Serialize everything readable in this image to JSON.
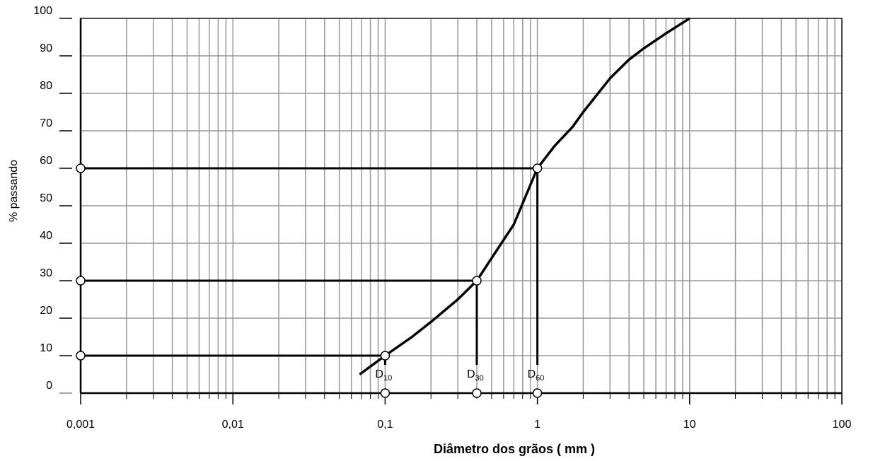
{
  "chart_data": {
    "type": "line",
    "x_label": "Diâmetro dos grãos ( mm )",
    "y_label": "% passando",
    "x_log": true,
    "grid": true,
    "xlim": [
      0.001,
      100
    ],
    "ylim": [
      0,
      100
    ],
    "xticks": [
      {
        "value": 0.001,
        "label": "0,001"
      },
      {
        "value": 0.01,
        "label": "0,01"
      },
      {
        "value": 0.1,
        "label": "0,1"
      },
      1,
      10,
      100
    ],
    "yticks": [
      0,
      10,
      20,
      30,
      40,
      50,
      60,
      70,
      80,
      90,
      100
    ],
    "series": [
      {
        "color": "#000000",
        "x": [
          0.068,
          0.1,
          0.15,
          0.2,
          0.3,
          0.4,
          0.5,
          0.7,
          1,
          1.3,
          1.7,
          2,
          3,
          4,
          5,
          7,
          10
        ],
        "values": [
          5,
          10,
          15,
          19,
          25,
          30,
          36,
          45,
          60,
          66,
          71,
          75,
          84,
          89,
          92,
          96,
          100
        ]
      }
    ],
    "markers": [
      {
        "symbol": "D",
        "subscript": "10",
        "x": 0.1,
        "y": 10
      },
      {
        "symbol": "D",
        "subscript": "30",
        "x": 0.4,
        "y": 30
      },
      {
        "symbol": "D",
        "subscript": "60",
        "x": 1,
        "y": 60
      }
    ]
  }
}
